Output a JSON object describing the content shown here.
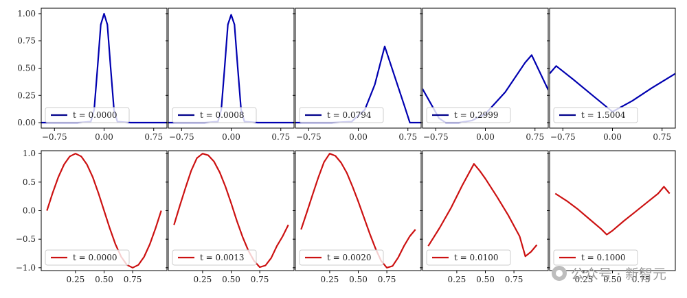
{
  "colors": {
    "row1": "#0000b0",
    "row2": "#cc1111",
    "legend_line_row1": "#00008b",
    "legend_line_row2": "#cc1111"
  },
  "watermark": {
    "text": "公众号 · 新智元",
    "icon": "wechat-icon"
  },
  "chart_data": [
    {
      "type": "line",
      "title": "",
      "xlabel": "",
      "ylabel": "",
      "xlim": [
        -0.95,
        0.95
      ],
      "ylim": [
        -0.05,
        1.05
      ],
      "xticks": [
        -0.75,
        0.0,
        0.75
      ],
      "xtick_labels": [
        "−0.75",
        "0.00",
        "0.75"
      ],
      "yticks": [
        0.0,
        0.25,
        0.5,
        0.75,
        1.0
      ],
      "ytick_labels": [
        "0.00",
        "0.25",
        "0.50",
        "0.75",
        "1.00"
      ],
      "legend": "lower-left",
      "panels": [
        {
          "legend_label": "t = 0.0000",
          "x": [
            -0.95,
            -0.4,
            -0.2,
            -0.15,
            -0.1,
            -0.05,
            0.0,
            0.05,
            0.1,
            0.15,
            0.2,
            0.4,
            0.95
          ],
          "y": [
            0,
            0,
            0.01,
            0.12,
            0.5,
            0.9,
            1.0,
            0.9,
            0.5,
            0.12,
            0.01,
            0,
            0
          ]
        },
        {
          "legend_label": "t = 0.0008",
          "x": [
            -0.95,
            -0.4,
            -0.2,
            -0.15,
            -0.1,
            -0.05,
            0.0,
            0.05,
            0.1,
            0.15,
            0.2,
            0.4,
            0.95
          ],
          "y": [
            0,
            0,
            0.01,
            0.12,
            0.5,
            0.9,
            0.99,
            0.9,
            0.5,
            0.12,
            0.01,
            0,
            0
          ]
        },
        {
          "legend_label": "t = 0.0794",
          "x": [
            -0.95,
            -0.4,
            -0.1,
            0.1,
            0.25,
            0.4,
            0.7,
            0.78,
            0.95
          ],
          "y": [
            0,
            0,
            0.01,
            0.12,
            0.35,
            0.7,
            0.15,
            0,
            0
          ]
        },
        {
          "legend_label": "t = 0.2999",
          "x": [
            -0.95,
            -0.7,
            -0.6,
            -0.4,
            -0.2,
            0.0,
            0.3,
            0.6,
            0.7,
            0.95
          ],
          "y": [
            0.31,
            0.04,
            0.0,
            0.0,
            0.02,
            0.08,
            0.28,
            0.55,
            0.62,
            0.3
          ]
        },
        {
          "legend_label": "t = 1.5004",
          "x": [
            -0.95,
            -0.85,
            -0.6,
            -0.3,
            0.0,
            0.3,
            0.6,
            0.95
          ],
          "y": [
            0.45,
            0.52,
            0.4,
            0.25,
            0.1,
            0.2,
            0.32,
            0.45
          ]
        }
      ]
    },
    {
      "type": "line",
      "title": "",
      "xlabel": "",
      "ylabel": "",
      "xlim": [
        -0.05,
        1.05
      ],
      "ylim": [
        -1.05,
        1.05
      ],
      "xticks": [
        0.25,
        0.5,
        0.75
      ],
      "xtick_labels": [
        "0.25",
        "0.50",
        "0.75"
      ],
      "yticks": [
        -1.0,
        -0.5,
        0.0,
        0.5,
        1.0
      ],
      "ytick_labels": [
        "−1.0",
        "−0.5",
        "0.0",
        "0.5",
        "1.0"
      ],
      "legend": "lower-left",
      "panels": [
        {
          "legend_label": "t = 0.0000",
          "x": [
            0,
            0.05,
            0.1,
            0.15,
            0.2,
            0.25,
            0.3,
            0.35,
            0.4,
            0.45,
            0.5,
            0.55,
            0.6,
            0.65,
            0.7,
            0.75,
            0.8,
            0.85,
            0.9,
            0.95,
            1.0
          ],
          "y": [
            0,
            0.31,
            0.59,
            0.81,
            0.95,
            1.0,
            0.95,
            0.81,
            0.59,
            0.31,
            0,
            -0.31,
            -0.59,
            -0.81,
            -0.95,
            -1.0,
            -0.95,
            -0.81,
            -0.59,
            -0.31,
            0
          ]
        },
        {
          "legend_label": "t = 0.0013",
          "x": [
            0,
            0.05,
            0.1,
            0.15,
            0.2,
            0.25,
            0.3,
            0.35,
            0.4,
            0.45,
            0.5,
            0.55,
            0.6,
            0.65,
            0.7,
            0.75,
            0.8,
            0.85,
            0.9,
            0.95,
            1.0
          ],
          "y": [
            -0.25,
            0.08,
            0.4,
            0.7,
            0.92,
            1.0,
            0.97,
            0.86,
            0.67,
            0.42,
            0.13,
            -0.18,
            -0.46,
            -0.7,
            -0.88,
            -0.99,
            -0.96,
            -0.83,
            -0.62,
            -0.45,
            -0.25
          ]
        },
        {
          "legend_label": "t = 0.0020",
          "x": [
            0,
            0.05,
            0.1,
            0.15,
            0.2,
            0.25,
            0.3,
            0.35,
            0.4,
            0.45,
            0.5,
            0.55,
            0.6,
            0.65,
            0.7,
            0.75,
            0.8,
            0.85,
            0.9,
            0.95,
            1.0
          ],
          "y": [
            -0.33,
            -0.03,
            0.28,
            0.58,
            0.85,
            1.0,
            0.96,
            0.84,
            0.66,
            0.42,
            0.16,
            -0.12,
            -0.4,
            -0.66,
            -0.88,
            -1.0,
            -0.97,
            -0.82,
            -0.62,
            -0.45,
            -0.33
          ]
        },
        {
          "legend_label": "t = 0.0100",
          "x": [
            0,
            0.1,
            0.2,
            0.3,
            0.4,
            0.45,
            0.5,
            0.6,
            0.7,
            0.8,
            0.85,
            0.9,
            0.95
          ],
          "y": [
            -0.62,
            -0.3,
            0.05,
            0.45,
            0.82,
            0.7,
            0.56,
            0.25,
            -0.08,
            -0.45,
            -0.8,
            -0.72,
            -0.6
          ]
        },
        {
          "legend_label": "t = 0.1000",
          "x": [
            0,
            0.1,
            0.2,
            0.3,
            0.4,
            0.45,
            0.5,
            0.6,
            0.7,
            0.8,
            0.9,
            0.95,
            1.0
          ],
          "y": [
            0.3,
            0.17,
            0.02,
            -0.15,
            -0.32,
            -0.42,
            -0.35,
            -0.18,
            -0.02,
            0.14,
            0.3,
            0.42,
            0.3
          ]
        }
      ]
    }
  ]
}
